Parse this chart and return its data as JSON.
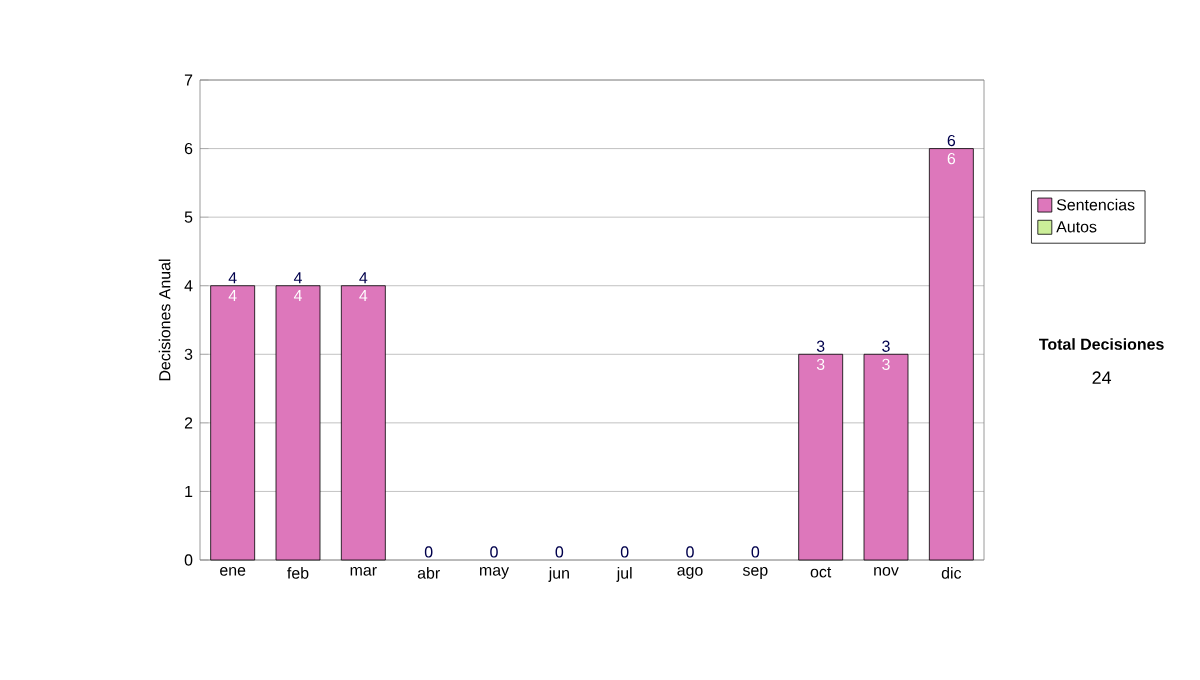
{
  "chart_data": {
    "type": "bar",
    "stacked": true,
    "ylabel": "Decisiones Anual",
    "categories": [
      "ene",
      "feb",
      "mar",
      "abr",
      "may",
      "jun",
      "jul",
      "ago",
      "sep",
      "oct",
      "nov",
      "dic"
    ],
    "series": [
      {
        "name": "Sentencias",
        "color": "#dd77bb",
        "values": [
          4,
          4,
          4,
          0,
          0,
          0,
          0,
          0,
          0,
          3,
          3,
          6
        ],
        "value_labels": [
          "4",
          "4",
          "4",
          null,
          null,
          null,
          null,
          null,
          null,
          "3",
          "3",
          "6"
        ]
      },
      {
        "name": "Autos",
        "color": "#ccee99",
        "values": [
          0,
          0,
          0,
          0,
          0,
          0,
          0,
          0,
          0,
          0,
          0,
          0
        ]
      }
    ],
    "totals": [
      "4",
      "4",
      "4",
      "0",
      "0",
      "0",
      "0",
      "0",
      "0",
      "3",
      "3",
      "6"
    ],
    "ylim": [
      0,
      7
    ],
    "yticks": [
      0,
      1,
      2,
      3,
      4,
      5,
      6,
      7
    ],
    "grid": "y",
    "legend": "right",
    "annotations": [
      "Total Decisiones",
      "24"
    ]
  }
}
